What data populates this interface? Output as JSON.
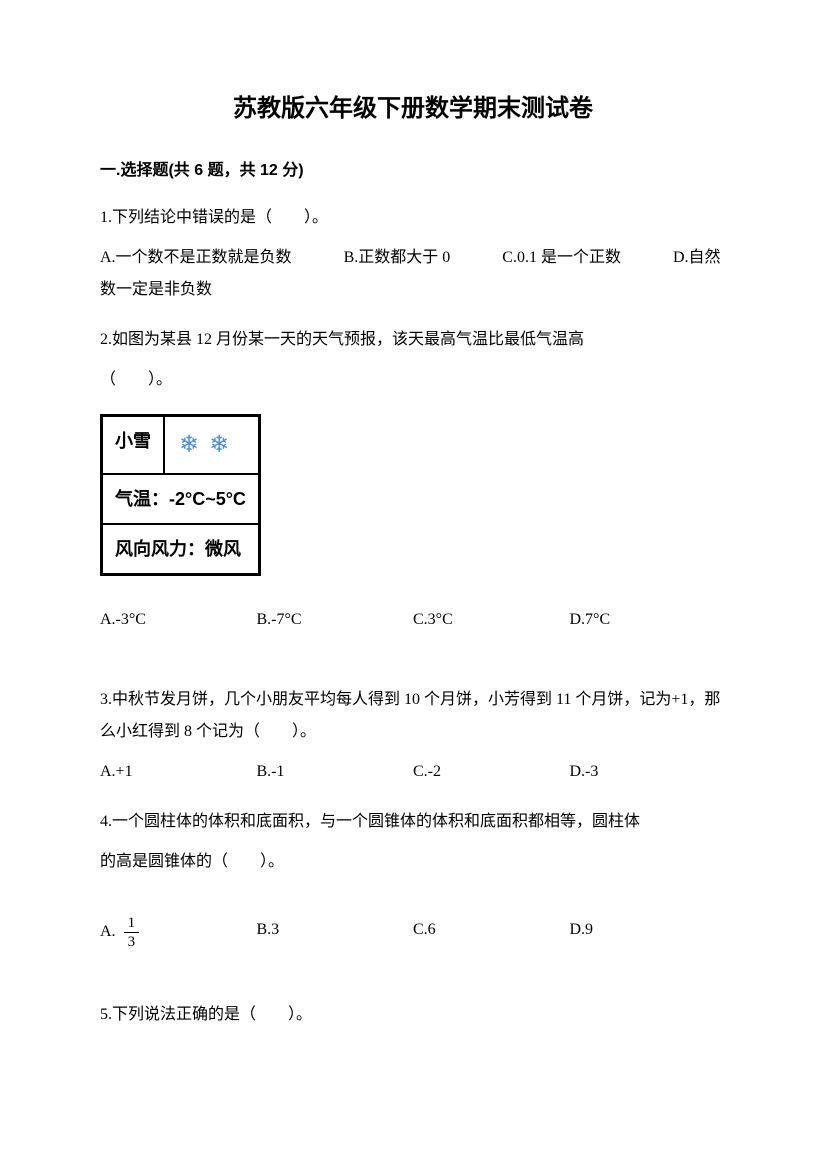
{
  "title": "苏教版六年级下册数学期末测试卷",
  "section": {
    "header": "一.选择题(共 6 题，共 12 分)"
  },
  "q1": {
    "text": "1.下列结论中错误的是（　　）。",
    "optA": "A.一个数不是正数就是负数",
    "optB": "B.正数都大于 0",
    "optC": "C.0.1 是一个正数",
    "optD": "D.自然数一定是非负数"
  },
  "q2": {
    "text": "2.如图为某县 12 月份某一天的天气预报，该天最高气温比最低气温高",
    "paren": "（　　）。",
    "weather": {
      "label": "小雪",
      "tempLabel": "气温：-2°C~5°C",
      "windLabel": "风向风力：微风"
    },
    "optA": "A.-3°C",
    "optB": "B.-7°C",
    "optC": "C.3°C",
    "optD": "D.7°C"
  },
  "q3": {
    "text": "3.中秋节发月饼，几个小朋友平均每人得到 10 个月饼，小芳得到 11 个月饼，记为+1，那么小红得到 8 个记为（　　）。",
    "optA": "A.+1",
    "optB": "B.-1",
    "optC": "C.-2",
    "optD": "D.-3"
  },
  "q4": {
    "text1": "4.一个圆柱体的体积和底面积，与一个圆锥体的体积和底面积都相等，圆柱体",
    "text2": "的高是圆锥体的（　　）。",
    "optA_prefix": "A.",
    "optA_num": "1",
    "optA_den": "3",
    "optB": "B.3",
    "optC": "C.6",
    "optD": "D.9"
  },
  "q5": {
    "text": "5.下列说法正确的是（　　）。"
  }
}
